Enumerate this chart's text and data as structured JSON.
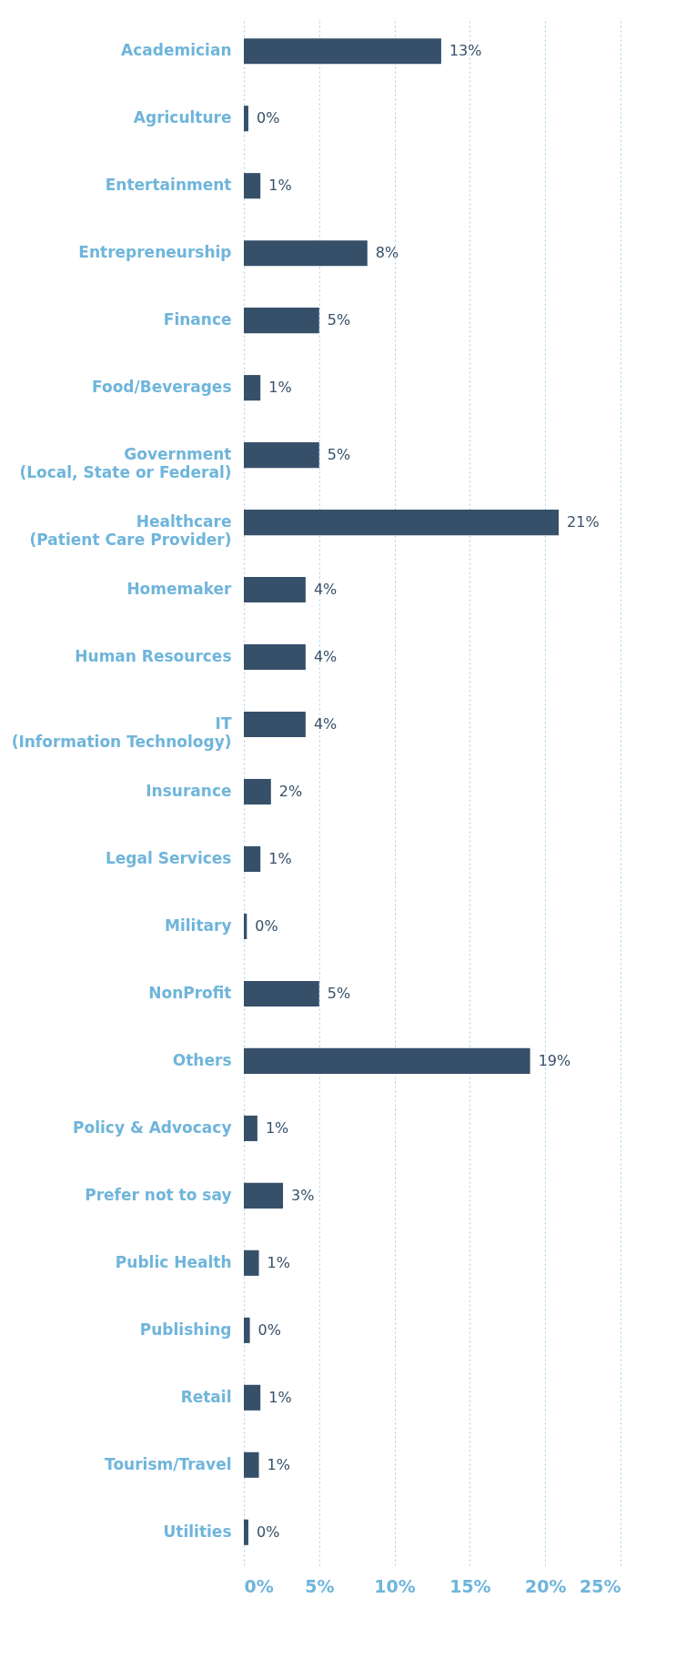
{
  "chart_data": {
    "type": "bar",
    "orientation": "horizontal",
    "categories": [
      "Academician",
      "Agriculture",
      "Entertainment",
      "Entrepreneurship",
      "Finance",
      "Food/Beverages",
      "Government\n(Local, State or Federal)",
      "Healthcare\n(Patient Care Provider)",
      "Homemaker",
      "Human Resources",
      "IT\n(Information Technology)",
      "Insurance",
      "Legal Services",
      "Military",
      "NonProfit",
      "Others",
      "Policy & Advocacy",
      "Prefer not to say",
      "Public Health",
      "Publishing",
      "Retail",
      "Tourism/Travel",
      "Utilities"
    ],
    "values": [
      13.1,
      0.3,
      1.1,
      8.2,
      5.0,
      1.1,
      5.0,
      20.9,
      4.1,
      4.1,
      4.1,
      1.8,
      1.1,
      0.2,
      5.0,
      19.0,
      0.9,
      2.6,
      1.0,
      0.4,
      1.1,
      1.0,
      0.3
    ],
    "value_labels": [
      "13%",
      "0%",
      "1%",
      "8%",
      "5%",
      "1%",
      "5%",
      "21%",
      "4%",
      "4%",
      "4%",
      "2%",
      "1%",
      "0%",
      "5%",
      "19%",
      "1%",
      "3%",
      "1%",
      "0%",
      "1%",
      "1%",
      "0%"
    ],
    "color": "#36506a",
    "xlim": [
      0,
      25
    ],
    "xticks": [
      {
        "value": 0,
        "label": "0%"
      },
      {
        "value": 5,
        "label": "5%"
      },
      {
        "value": 10,
        "label": "10%"
      },
      {
        "value": 15,
        "label": "15%"
      },
      {
        "value": 20,
        "label": "20%"
      },
      {
        "value": 25,
        "label": "25%"
      }
    ],
    "grid": "x",
    "line_style": "dotted"
  }
}
